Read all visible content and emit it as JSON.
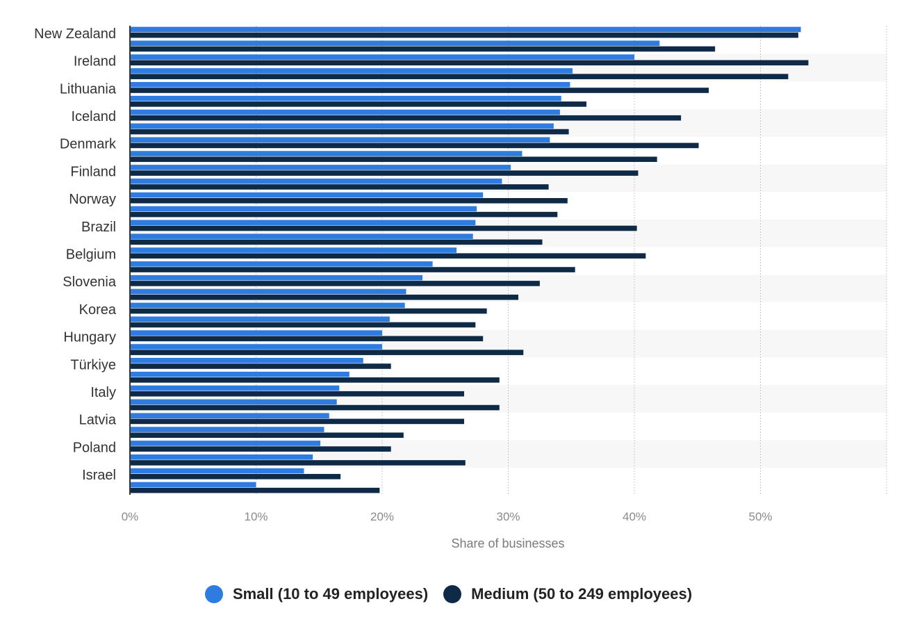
{
  "chart_data": {
    "type": "bar",
    "orientation": "horizontal",
    "xlabel": "Share of businesses",
    "xlim": [
      0,
      60
    ],
    "xticks": [
      0,
      10,
      20,
      30,
      40,
      50
    ],
    "xtick_labels": [
      "0%",
      "10%",
      "20%",
      "30%",
      "40%",
      "50%"
    ],
    "grid": true,
    "legend_position": "bottom",
    "labeled_categories": [
      "New Zealand",
      "Ireland",
      "Lithuania",
      "Iceland",
      "Denmark",
      "Finland",
      "Norway",
      "Brazil",
      "Belgium",
      "Slovenia",
      "Korea",
      "Hungary",
      "Türkiye",
      "Italy",
      "Latvia",
      "Poland",
      "Israel"
    ],
    "categories": [
      "New Zealand",
      "",
      "Ireland",
      "",
      "Lithuania",
      "",
      "Iceland",
      "",
      "Denmark",
      "",
      "Finland",
      "",
      "Norway",
      "",
      "Brazil",
      "",
      "Belgium",
      "",
      "Slovenia",
      "",
      "Korea",
      "",
      "Hungary",
      "",
      "Türkiye",
      "",
      "Italy",
      "",
      "Latvia",
      "",
      "Poland",
      "",
      "Israel",
      ""
    ],
    "series": [
      {
        "name": "Small (10 to 49 employees)",
        "color": "#2e7ce0",
        "values": [
          53.2,
          42.0,
          40.0,
          35.1,
          34.9,
          34.2,
          34.1,
          33.6,
          33.3,
          31.1,
          30.2,
          29.5,
          28.0,
          27.5,
          27.4,
          27.2,
          25.9,
          24.0,
          23.2,
          21.9,
          21.8,
          20.6,
          20.0,
          20.0,
          18.5,
          17.4,
          16.6,
          16.4,
          15.8,
          15.4,
          15.1,
          14.5,
          13.8,
          10.0
        ]
      },
      {
        "name": "Medium (50 to 249 employees)",
        "color": "#0e2a47",
        "values": [
          53.0,
          46.4,
          53.8,
          52.2,
          45.9,
          36.2,
          43.7,
          34.8,
          45.1,
          41.8,
          40.3,
          33.2,
          34.7,
          33.9,
          40.2,
          32.7,
          40.9,
          35.3,
          32.5,
          30.8,
          28.3,
          27.4,
          28.0,
          31.2,
          20.7,
          29.3,
          26.5,
          29.3,
          26.5,
          21.7,
          20.7,
          26.6,
          16.7,
          19.8
        ]
      }
    ]
  }
}
